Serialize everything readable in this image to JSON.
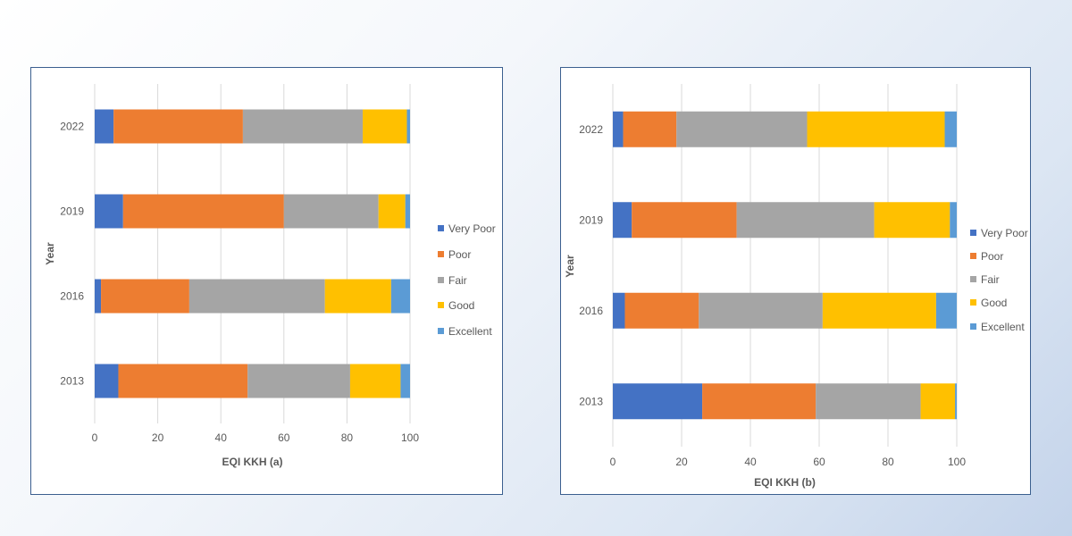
{
  "chart_data": [
    {
      "type": "bar",
      "orientation": "horizontal",
      "stacked": true,
      "categories": [
        "2013",
        "2016",
        "2019",
        "2022"
      ],
      "xlabel": "EQI KKH (a)",
      "ylabel": "Year",
      "xlim": [
        0,
        100
      ],
      "xticks": [
        0,
        20,
        40,
        60,
        80,
        100
      ],
      "grid": true,
      "legend": "right",
      "series": [
        {
          "name": "Very Poor",
          "color": "#4472C4",
          "values": [
            7.5,
            2,
            9,
            6
          ]
        },
        {
          "name": "Poor",
          "color": "#ED7D31",
          "values": [
            41,
            28,
            51,
            41
          ]
        },
        {
          "name": "Fair",
          "color": "#A5A5A5",
          "values": [
            32.5,
            43,
            30,
            38
          ]
        },
        {
          "name": "Good",
          "color": "#FFC000",
          "values": [
            16,
            21,
            8.5,
            14
          ]
        },
        {
          "name": "Excellent",
          "color": "#5B9BD5",
          "values": [
            3,
            6,
            1.5,
            1
          ]
        }
      ]
    },
    {
      "type": "bar",
      "orientation": "horizontal",
      "stacked": true,
      "categories": [
        "2013",
        "2016",
        "2019",
        "2022"
      ],
      "xlabel": "EQI KKH (b)",
      "ylabel": "Year",
      "xlim": [
        0,
        100
      ],
      "xticks": [
        0,
        20,
        40,
        60,
        80,
        100
      ],
      "grid": true,
      "legend": "right",
      "series": [
        {
          "name": "Very Poor",
          "color": "#4472C4",
          "values": [
            26,
            3.5,
            5.5,
            3
          ]
        },
        {
          "name": "Poor",
          "color": "#ED7D31",
          "values": [
            33,
            21.5,
            30.5,
            15.5
          ]
        },
        {
          "name": "Fair",
          "color": "#A5A5A5",
          "values": [
            30.5,
            36,
            40,
            38
          ]
        },
        {
          "name": "Good",
          "color": "#FFC000",
          "values": [
            10,
            33,
            22,
            40
          ]
        },
        {
          "name": "Excellent",
          "color": "#5B9BD5",
          "values": [
            0.5,
            6,
            2,
            3.5
          ]
        }
      ]
    }
  ]
}
